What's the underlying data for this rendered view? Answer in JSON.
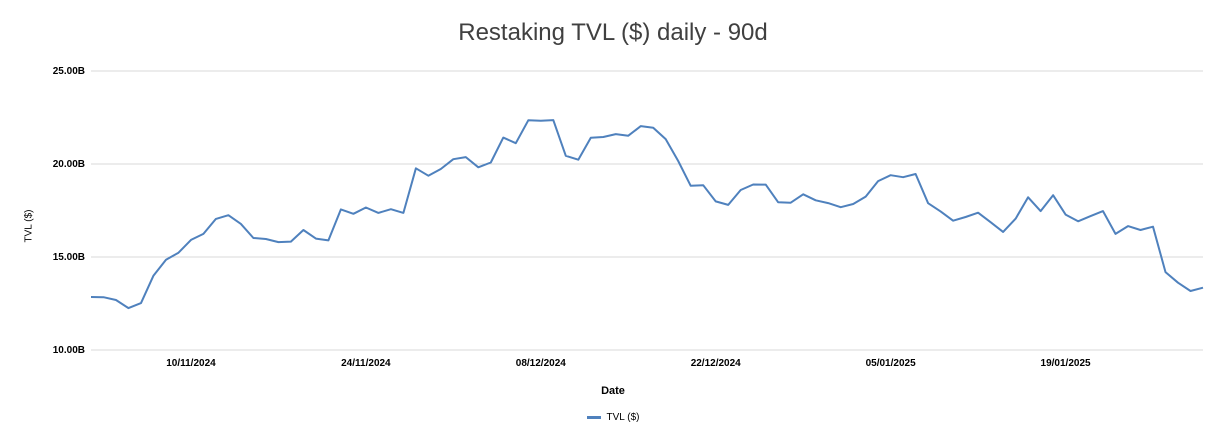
{
  "chart_data": {
    "type": "line",
    "title": "Restaking TVL ($) daily - 90d",
    "xlabel": "Date",
    "ylabel": "TVL ($)",
    "ylim": [
      10,
      25
    ],
    "yticks": [
      {
        "value": 10,
        "label": "10.00B"
      },
      {
        "value": 15,
        "label": "15.00B"
      },
      {
        "value": 20,
        "label": "20.00B"
      },
      {
        "value": 25,
        "label": "25.00B"
      }
    ],
    "xticks": [
      {
        "index": 8,
        "label": "10/11/2024"
      },
      {
        "index": 22,
        "label": "24/11/2024"
      },
      {
        "index": 36,
        "label": "08/12/2024"
      },
      {
        "index": 50,
        "label": "22/12/2024"
      },
      {
        "index": 64,
        "label": "05/01/2025"
      },
      {
        "index": 78,
        "label": "19/01/2025"
      }
    ],
    "x_start": "2024-11-02",
    "x_end": "2025-01-30",
    "grid": true,
    "legend_position": "bottom",
    "series": [
      {
        "name": "TVL ($)",
        "color": "#4f81bd",
        "values": [
          12.85,
          12.84,
          12.69,
          12.25,
          12.52,
          14.0,
          14.85,
          15.23,
          15.92,
          16.24,
          17.05,
          17.25,
          16.78,
          16.02,
          15.97,
          15.8,
          15.83,
          16.45,
          15.99,
          15.89,
          17.56,
          17.32,
          17.66,
          17.37,
          17.57,
          17.37,
          19.77,
          19.37,
          19.73,
          20.26,
          20.37,
          19.82,
          20.08,
          21.42,
          21.12,
          22.35,
          22.33,
          22.36,
          20.44,
          20.23,
          21.41,
          21.45,
          21.61,
          21.52,
          22.04,
          21.95,
          21.34,
          20.16,
          18.83,
          18.86,
          17.99,
          17.8,
          18.6,
          18.9,
          18.89,
          17.94,
          17.92,
          18.37,
          18.05,
          17.9,
          17.68,
          17.85,
          18.25,
          19.08,
          19.4,
          19.29,
          19.46,
          17.89,
          17.45,
          16.95,
          17.15,
          17.38,
          16.87,
          16.35,
          17.06,
          18.21,
          17.47,
          18.32,
          17.28,
          16.92,
          17.2,
          17.47,
          16.24,
          16.66,
          16.45,
          16.63,
          14.19,
          13.62,
          13.17,
          13.35
        ]
      }
    ]
  }
}
